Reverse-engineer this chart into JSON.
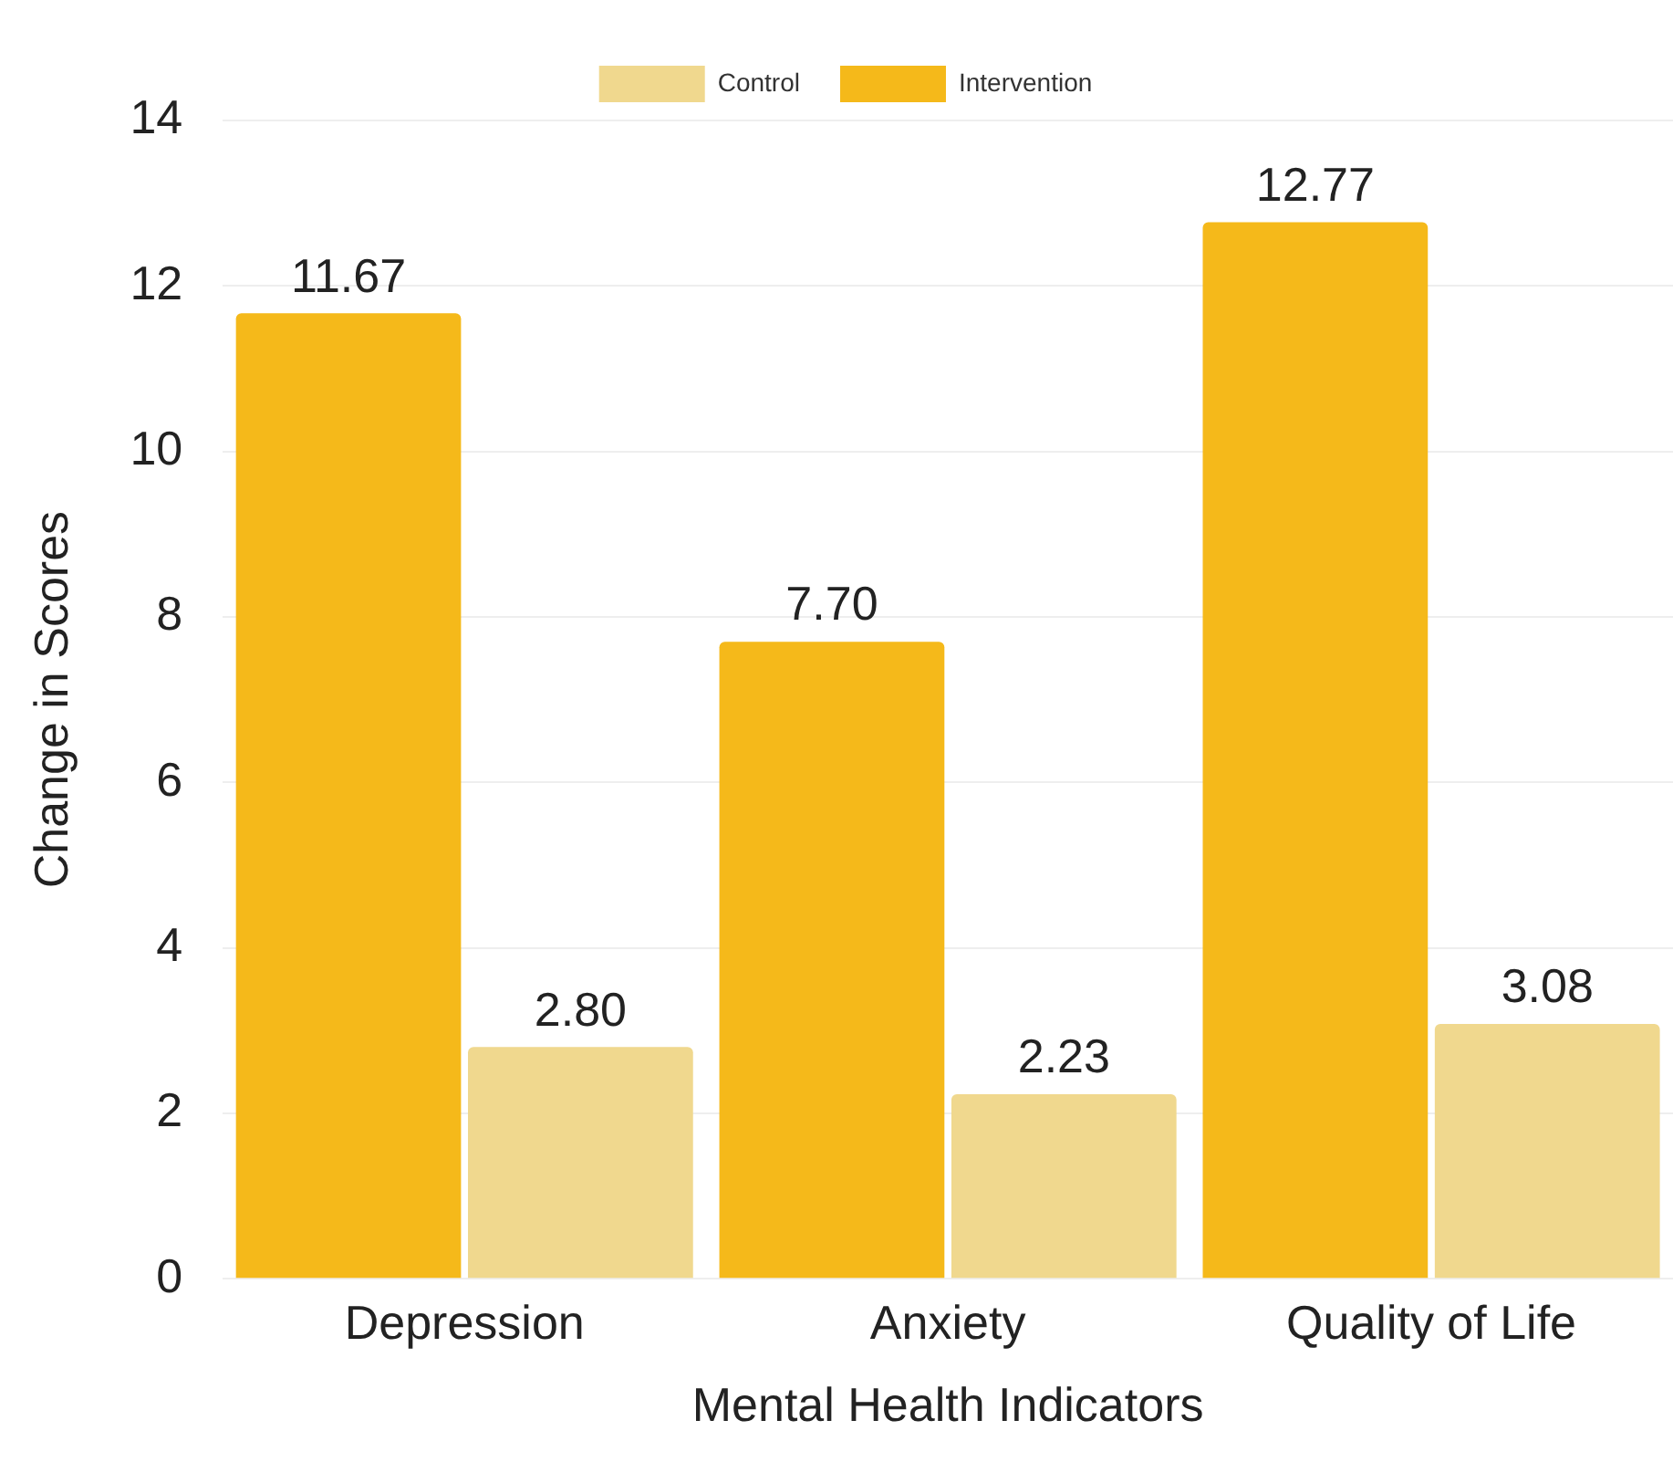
{
  "chart_data": {
    "type": "bar",
    "xlabel": "Mental Health Indicators",
    "ylabel": "Change in Scores",
    "categories": [
      "Depression",
      "Anxiety",
      "Quality of Life"
    ],
    "series": [
      {
        "name": "Intervention",
        "color": "#f5b91a",
        "values": [
          11.67,
          7.7,
          12.77
        ],
        "value_labels": [
          "11.67",
          "7.70",
          "12.77"
        ]
      },
      {
        "name": "Control",
        "color": "#f0d88e",
        "values": [
          2.8,
          2.23,
          3.08
        ],
        "value_labels": [
          "2.80",
          "2.23",
          "3.08"
        ]
      }
    ],
    "ylim": [
      0,
      14
    ],
    "yticks": [
      0,
      2,
      4,
      6,
      8,
      10,
      12,
      14
    ],
    "grid": "y",
    "legend": "top"
  }
}
